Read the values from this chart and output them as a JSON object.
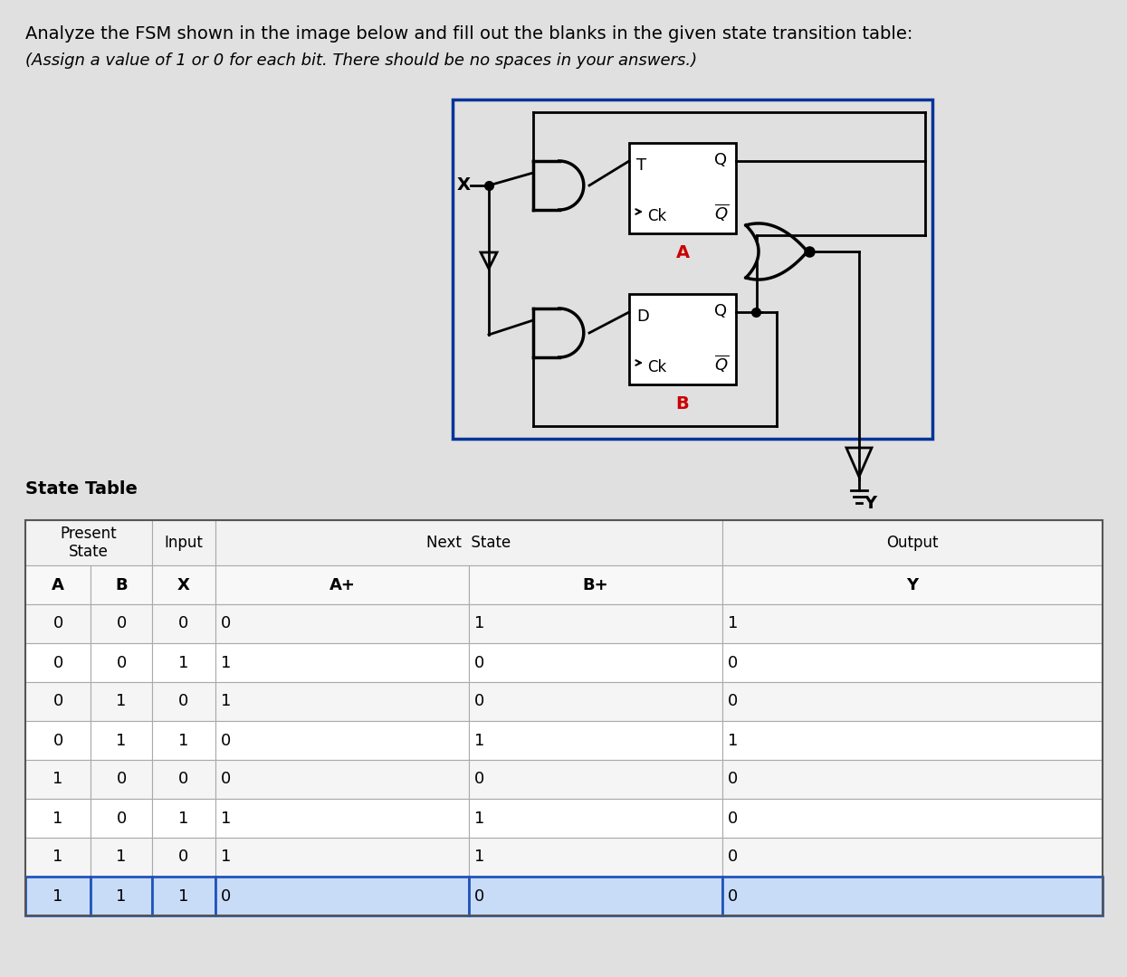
{
  "title_line1": "Analyze the FSM shown in the image below and fill out the blanks in the given state transition table:",
  "title_line2": "(Assign a value of 1 or 0 for each bit. There should be no spaces in your answers.)",
  "bg_color": "#e0e0e0",
  "state_table_title": "State Table",
  "col_headers_row2": [
    "A",
    "B",
    "X",
    "A+",
    "B+",
    "Y"
  ],
  "table_data": [
    [
      "0",
      "0",
      "0",
      "0",
      "1",
      "1"
    ],
    [
      "0",
      "0",
      "1",
      "1",
      "0",
      "0"
    ],
    [
      "0",
      "1",
      "0",
      "1",
      "0",
      "0"
    ],
    [
      "0",
      "1",
      "1",
      "0",
      "1",
      "1"
    ],
    [
      "1",
      "0",
      "0",
      "0",
      "0",
      "0"
    ],
    [
      "1",
      "0",
      "1",
      "1",
      "1",
      "0"
    ],
    [
      "1",
      "1",
      "0",
      "1",
      "1",
      "0"
    ],
    [
      "1",
      "1",
      "1",
      "0",
      "0",
      "0"
    ]
  ],
  "highlight_color": "#c8dcf8",
  "highlight_border_color": "#2255bb",
  "circuit_box_color": "#003399",
  "label_A_color": "#cc0000",
  "label_B_color": "#cc0000"
}
